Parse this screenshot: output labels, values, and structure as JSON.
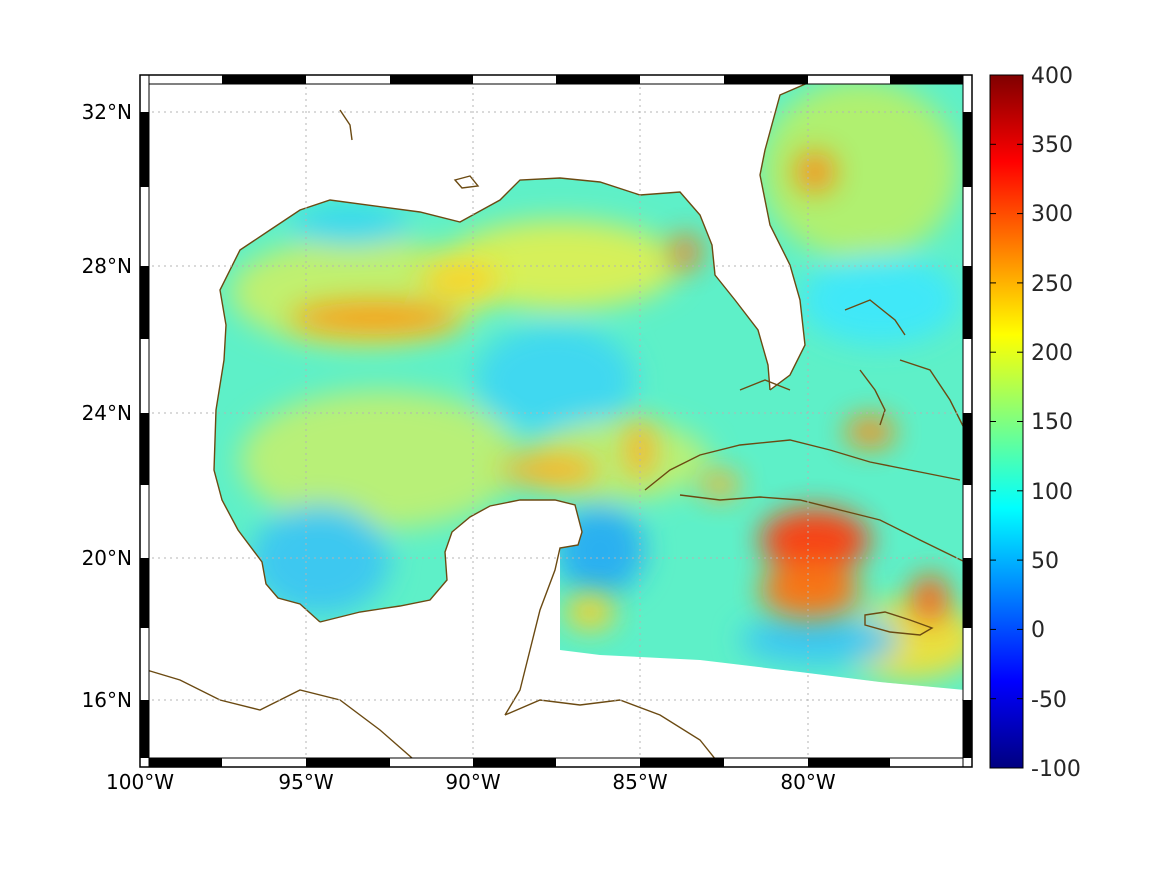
{
  "map": {
    "region": "Gulf of Mexico",
    "longitude_labels": [
      "100°W",
      "95°W",
      "90°W",
      "85°W",
      "80°W"
    ],
    "latitude_labels": [
      "32°N",
      "28°N",
      "24°N",
      "20°N",
      "16°N"
    ],
    "lon_range": [
      -100,
      -75.1
    ],
    "lat_range": [
      14.2,
      33.0
    ],
    "grid": "dotted",
    "coastline_color": "#6b4a12",
    "land_color": "#ffffff"
  },
  "colorbar": {
    "ticks": [
      "400",
      "350",
      "300",
      "250",
      "200",
      "150",
      "100",
      "50",
      "0",
      "-50",
      "-100"
    ],
    "min": -100,
    "max": 400,
    "colormap": "jet"
  },
  "chart_data": {
    "type": "heatmap",
    "title": "",
    "xlabel": "",
    "ylabel": "",
    "xlim": [
      -100,
      -75.1
    ],
    "ylim": [
      14.2,
      33.0
    ],
    "value_range": [
      -100,
      400
    ],
    "features": [
      {
        "name": "high band",
        "lon": -93.5,
        "lat": 26.6,
        "value": 260
      },
      {
        "name": "high band",
        "lon": -87.5,
        "lat": 22.3,
        "value": 240
      },
      {
        "name": "high spot",
        "lon": -84.2,
        "lat": 28.3,
        "value": 270
      },
      {
        "name": "high spot",
        "lon": -79.8,
        "lat": 30.5,
        "value": 260
      },
      {
        "name": "high spot",
        "lon": -77.9,
        "lat": 23.6,
        "value": 255
      },
      {
        "name": "high region",
        "lon": -79.5,
        "lat": 20.3,
        "value": 300
      },
      {
        "name": "high spot",
        "lon": -76.1,
        "lat": 19.0,
        "value": 290
      },
      {
        "name": "low region",
        "lon": -88.5,
        "lat": 25.0,
        "value": 80
      },
      {
        "name": "low region",
        "lon": -85.5,
        "lat": 20.2,
        "value": 60
      },
      {
        "name": "low region",
        "lon": -95.0,
        "lat": 19.5,
        "value": 90
      }
    ]
  }
}
